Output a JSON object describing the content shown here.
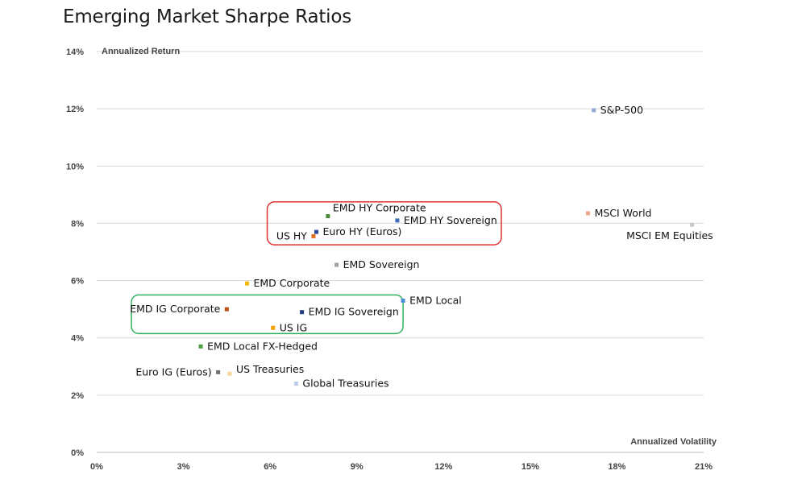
{
  "chart_data": {
    "type": "scatter",
    "title": "Emerging Market Sharpe Ratios",
    "xlabel": "Annualized Volatility",
    "ylabel": "Annualized Return",
    "xlim": [
      0,
      21
    ],
    "ylim": [
      0,
      14
    ],
    "x_ticks": [
      0,
      3,
      6,
      9,
      12,
      15,
      18,
      21
    ],
    "y_ticks": [
      0,
      2,
      4,
      6,
      8,
      10,
      12,
      14
    ],
    "x_tick_labels": [
      "0%",
      "3%",
      "6%",
      "9%",
      "12%",
      "15%",
      "18%",
      "21%"
    ],
    "y_tick_labels": [
      "0%",
      "2%",
      "4%",
      "6%",
      "8%",
      "10%",
      "12%",
      "14%"
    ],
    "grid": "horizontal",
    "points": [
      {
        "name": "S&P-500",
        "x": 17.2,
        "y": 11.95,
        "color": "#8fa8d8",
        "label_pos": "right"
      },
      {
        "name": "MSCI World",
        "x": 17.0,
        "y": 8.35,
        "color": "#f2a58a",
        "label_pos": "right"
      },
      {
        "name": "MSCI EM Equities",
        "x": 20.6,
        "y": 7.95,
        "color": "#c8c8c8",
        "label_pos": "below-left"
      },
      {
        "name": "EMD HY Corporate",
        "x": 8.0,
        "y": 8.25,
        "color": "#4a8a3a",
        "label_pos": "above"
      },
      {
        "name": "EMD HY Sovereign",
        "x": 10.4,
        "y": 8.1,
        "color": "#3a6fb5",
        "label_pos": "right"
      },
      {
        "name": "Euro HY (Euros)",
        "x": 7.6,
        "y": 7.7,
        "color": "#2a4a9a",
        "label_pos": "right"
      },
      {
        "name": "US HY",
        "x": 7.5,
        "y": 7.55,
        "color": "#e07020",
        "label_pos": "left"
      },
      {
        "name": "EMD Sovereign",
        "x": 8.3,
        "y": 6.55,
        "color": "#a0a0a0",
        "label_pos": "right"
      },
      {
        "name": "EMD Corporate",
        "x": 5.2,
        "y": 5.9,
        "color": "#f0b800",
        "label_pos": "right"
      },
      {
        "name": "EMD Local",
        "x": 10.6,
        "y": 5.3,
        "color": "#4a90d8",
        "label_pos": "right"
      },
      {
        "name": "EMD IG Corporate",
        "x": 4.5,
        "y": 5.0,
        "color": "#b85010",
        "label_pos": "left"
      },
      {
        "name": "EMD IG Sovereign",
        "x": 7.1,
        "y": 4.9,
        "color": "#1f3f80",
        "label_pos": "right"
      },
      {
        "name": "US IG",
        "x": 6.1,
        "y": 4.35,
        "color": "#f0a000",
        "label_pos": "right"
      },
      {
        "name": "EMD Local FX-Hedged",
        "x": 3.6,
        "y": 3.7,
        "color": "#4aa040",
        "label_pos": "right"
      },
      {
        "name": "Euro IG (Euros)",
        "x": 4.2,
        "y": 2.8,
        "color": "#707070",
        "label_pos": "left"
      },
      {
        "name": "US Treasuries",
        "x": 4.6,
        "y": 2.75,
        "color": "#f5d79a",
        "label_pos": "right-above"
      },
      {
        "name": "Global Treasuries",
        "x": 6.9,
        "y": 2.4,
        "color": "#b8cce8",
        "label_pos": "right"
      }
    ],
    "highlight_boxes": [
      {
        "color": "#e03030",
        "x": [
          5.9,
          14.0
        ],
        "y": [
          7.25,
          8.75
        ]
      },
      {
        "color": "#30b060",
        "x": [
          1.2,
          10.6
        ],
        "y": [
          4.15,
          5.5
        ]
      }
    ]
  }
}
